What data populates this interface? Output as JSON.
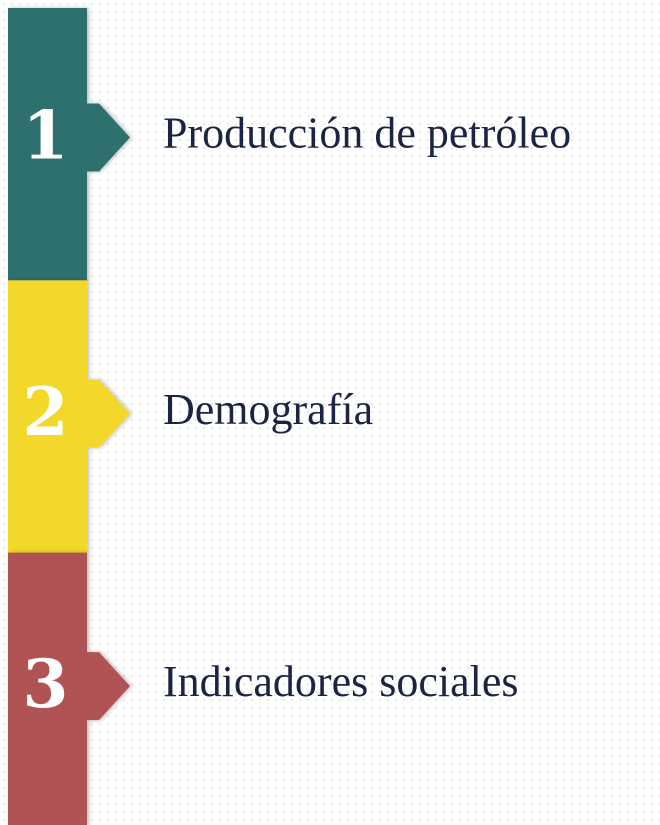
{
  "items": [
    {
      "number": "1",
      "label": "Producción de petróleo",
      "color": "#2f6f6e"
    },
    {
      "number": "2",
      "label": "Demografía",
      "color": "#f2d82b"
    },
    {
      "number": "3",
      "label": "Indicadores sociales",
      "color": "#b05354"
    }
  ]
}
